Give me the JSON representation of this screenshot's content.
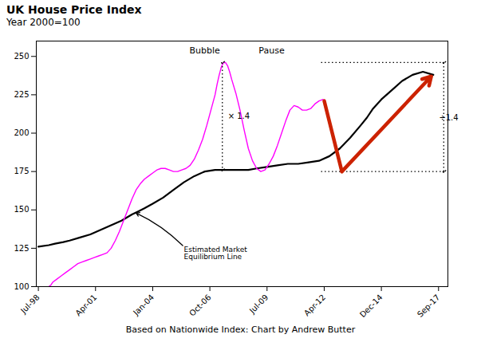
{
  "chart_data": {
    "type": "line",
    "title": "UK House Price Index",
    "subtitle": "Year 2000=100",
    "caption": "Based on Nationwide Index: Chart by Andrew Butter",
    "series": [
      {
        "color": "#000000",
        "x": [
          1998.5,
          1999.0,
          1999.3,
          1999.7,
          2000.0,
          2000.5,
          2001.0,
          2001.5,
          2002.0,
          2002.5,
          2003.0,
          2003.3,
          2003.6,
          2004.0,
          2004.5,
          2005.0,
          2005.5,
          2006.0,
          2006.5,
          2007.0,
          2007.4,
          2007.7,
          2008.0,
          2008.3,
          2008.6,
          2009.0,
          2009.5,
          2010.0,
          2010.5,
          2011.0,
          2011.5,
          2012.0,
          2012.5,
          2013.0,
          2013.5,
          2014.0,
          2014.3,
          2014.6,
          2015.0,
          2015.5,
          2016.0,
          2016.5,
          2017.0,
          2017.5
        ],
        "values": [
          126,
          127,
          128,
          129,
          130,
          132,
          134,
          137,
          140,
          143,
          147,
          149,
          151,
          154,
          158,
          163,
          168,
          172,
          175,
          176,
          176,
          176,
          176,
          176,
          176,
          177,
          178,
          179,
          180,
          180,
          181,
          182,
          185,
          190,
          197,
          205,
          210,
          216,
          222,
          228,
          234,
          238,
          240,
          238
        ]
      },
      {
        "color": "#FF00FF",
        "x": [
          1999.0,
          1999.1,
          1999.2,
          1999.4,
          1999.6,
          1999.8,
          2000.0,
          2000.2,
          2000.4,
          2000.6,
          2000.8,
          2001.0,
          2001.2,
          2001.4,
          2001.6,
          2001.8,
          2002.0,
          2002.2,
          2002.4,
          2002.6,
          2002.8,
          2003.0,
          2003.2,
          2003.4,
          2003.6,
          2003.8,
          2004.0,
          2004.2,
          2004.4,
          2004.6,
          2004.8,
          2005.0,
          2005.2,
          2005.4,
          2005.6,
          2005.8,
          2006.0,
          2006.2,
          2006.4,
          2006.6,
          2006.8,
          2007.0,
          2007.1,
          2007.2,
          2007.3,
          2007.4,
          2007.5,
          2007.6,
          2007.7,
          2007.8,
          2008.0,
          2008.2,
          2008.4,
          2008.6,
          2008.8,
          2009.0,
          2009.2,
          2009.4,
          2009.6,
          2009.8,
          2010.0,
          2010.2,
          2010.4,
          2010.6,
          2010.8,
          2011.0,
          2011.2,
          2011.4,
          2011.6,
          2011.8,
          2012.0,
          2012.2
        ],
        "values": [
          100,
          101,
          103,
          105,
          107,
          109,
          111,
          113,
          115,
          116,
          117,
          118,
          119,
          120,
          121,
          122,
          125,
          130,
          136,
          143,
          150,
          157,
          163,
          167,
          170,
          172,
          174,
          176,
          177,
          177,
          176,
          175,
          175,
          176,
          177,
          179,
          183,
          189,
          196,
          205,
          215,
          225,
          232,
          238,
          243,
          246,
          246,
          244,
          240,
          235,
          226,
          215,
          202,
          190,
          182,
          177,
          175,
          176,
          180,
          185,
          192,
          200,
          208,
          215,
          218,
          217,
          215,
          215,
          216,
          219,
          221,
          222
        ]
      }
    ],
    "xlim": [
      1998.4,
      2018.2
    ],
    "xticks": [
      {
        "value": 1998.5,
        "label": "Jul-98"
      },
      {
        "value": 2001.25,
        "label": "Apr-01"
      },
      {
        "value": 2004.0,
        "label": "Jan-04"
      },
      {
        "value": 2006.75,
        "label": "Oct-06"
      },
      {
        "value": 2009.5,
        "label": "Jul-09"
      },
      {
        "value": 2012.25,
        "label": "Apr-12"
      },
      {
        "value": 2015.0,
        "label": "Dec-14"
      },
      {
        "value": 2017.75,
        "label": "Sep-17"
      }
    ],
    "ylim": [
      100,
      260
    ],
    "yticks": [
      100,
      125,
      150,
      175,
      200,
      225,
      250
    ],
    "grid": false,
    "annotations": [
      {
        "text": "Bubble",
        "x": 2006.5,
        "y": 252
      },
      {
        "text": "× 1.4",
        "x": 2007.5,
        "y": 211
      },
      {
        "text": "Pause",
        "x": 2009.1,
        "y": 252
      },
      {
        "text": "÷1.4",
        "x": 2017.85,
        "y": 210
      },
      {
        "text": "Estimated Market\nEquilibrium Line",
        "x": 2005.5,
        "y": 126,
        "arrow_to": [
          2003.2,
          148
        ]
      }
    ],
    "lines": [
      {
        "x1": 2007.35,
        "y1": 246,
        "x2": 2007.35,
        "y2": 176,
        "line_style": "dotted",
        "arrow": "both"
      },
      {
        "x1": 2012.1,
        "y1": 246,
        "x2": 2018.1,
        "y2": 246,
        "line_style": "dotted"
      },
      {
        "x1": 2012.1,
        "y1": 175,
        "x2": 2018.1,
        "y2": 175,
        "line_style": "dotted"
      },
      {
        "x1": 2018.0,
        "y1": 246,
        "x2": 2018.0,
        "y2": 175,
        "line_style": "dotted",
        "arrow": "both"
      }
    ],
    "paths": [
      {
        "x": [
          2012.25,
          2013.1,
          2017.4
        ],
        "y": [
          221,
          175,
          237
        ],
        "color": "#CC2200",
        "arrow": "end"
      }
    ]
  }
}
